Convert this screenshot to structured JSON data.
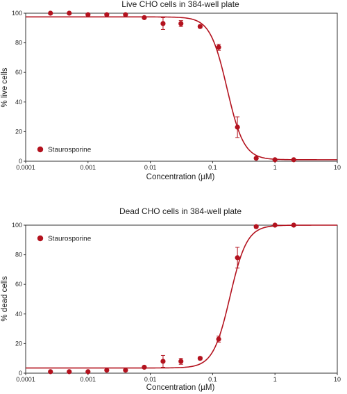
{
  "chart_data": [
    {
      "type": "scatter",
      "title": "Live CHO cells in 384-well plate",
      "xlabel": "Concentration (µM)",
      "ylabel": "% live cells",
      "xscale": "log",
      "xlim": [
        0.0001,
        10
      ],
      "ylim": [
        0,
        100
      ],
      "x_ticks": [
        "0.0001",
        "0.001",
        "0.01",
        "0.1",
        "1",
        "10"
      ],
      "y_ticks": [
        "0",
        "20",
        "40",
        "60",
        "80",
        "100"
      ],
      "grid": false,
      "legend_position": "bottom-left",
      "color": "#b3121e",
      "series": [
        {
          "name": "Staurosporine",
          "x": [
            0.00025,
            0.0005,
            0.001,
            0.002,
            0.004,
            0.008,
            0.016,
            0.031,
            0.063,
            0.125,
            0.25,
            0.5,
            1,
            2
          ],
          "y": [
            100,
            100,
            99,
            99,
            99,
            97,
            93,
            93,
            91,
            77,
            23,
            2,
            1,
            1
          ],
          "error": [
            0,
            0,
            0,
            0,
            0,
            0,
            4,
            2,
            1,
            2,
            7,
            0,
            0,
            0
          ]
        }
      ],
      "fit": {
        "type": "sigmoid",
        "top": 97.5,
        "bottom": 1,
        "ec50": 0.17,
        "hill": -3.2
      }
    },
    {
      "type": "scatter",
      "title": "Dead CHO cells in 384-well plate",
      "xlabel": "Concentration (µM)",
      "ylabel": "% dead cells",
      "xscale": "log",
      "xlim": [
        0.0001,
        10
      ],
      "ylim": [
        0,
        100
      ],
      "x_ticks": [
        "0.0001",
        "0.001",
        "0.01",
        "0.1",
        "1",
        "10"
      ],
      "y_ticks": [
        "0",
        "20",
        "40",
        "60",
        "80",
        "100"
      ],
      "grid": false,
      "legend_position": "top-left",
      "color": "#b3121e",
      "series": [
        {
          "name": "Staurosporine",
          "x": [
            0.00025,
            0.0005,
            0.001,
            0.002,
            0.004,
            0.008,
            0.016,
            0.031,
            0.063,
            0.125,
            0.25,
            0.5,
            1,
            2
          ],
          "y": [
            1,
            1,
            1,
            2,
            2,
            4,
            8,
            8,
            10,
            23,
            78,
            99,
            100,
            100
          ],
          "error": [
            0,
            0,
            0,
            0,
            0,
            0,
            4,
            2,
            1,
            2,
            7,
            1,
            0,
            0
          ]
        }
      ],
      "fit": {
        "type": "sigmoid",
        "top": 100,
        "bottom": 3.5,
        "ec50": 0.19,
        "hill": 3.2
      }
    }
  ]
}
